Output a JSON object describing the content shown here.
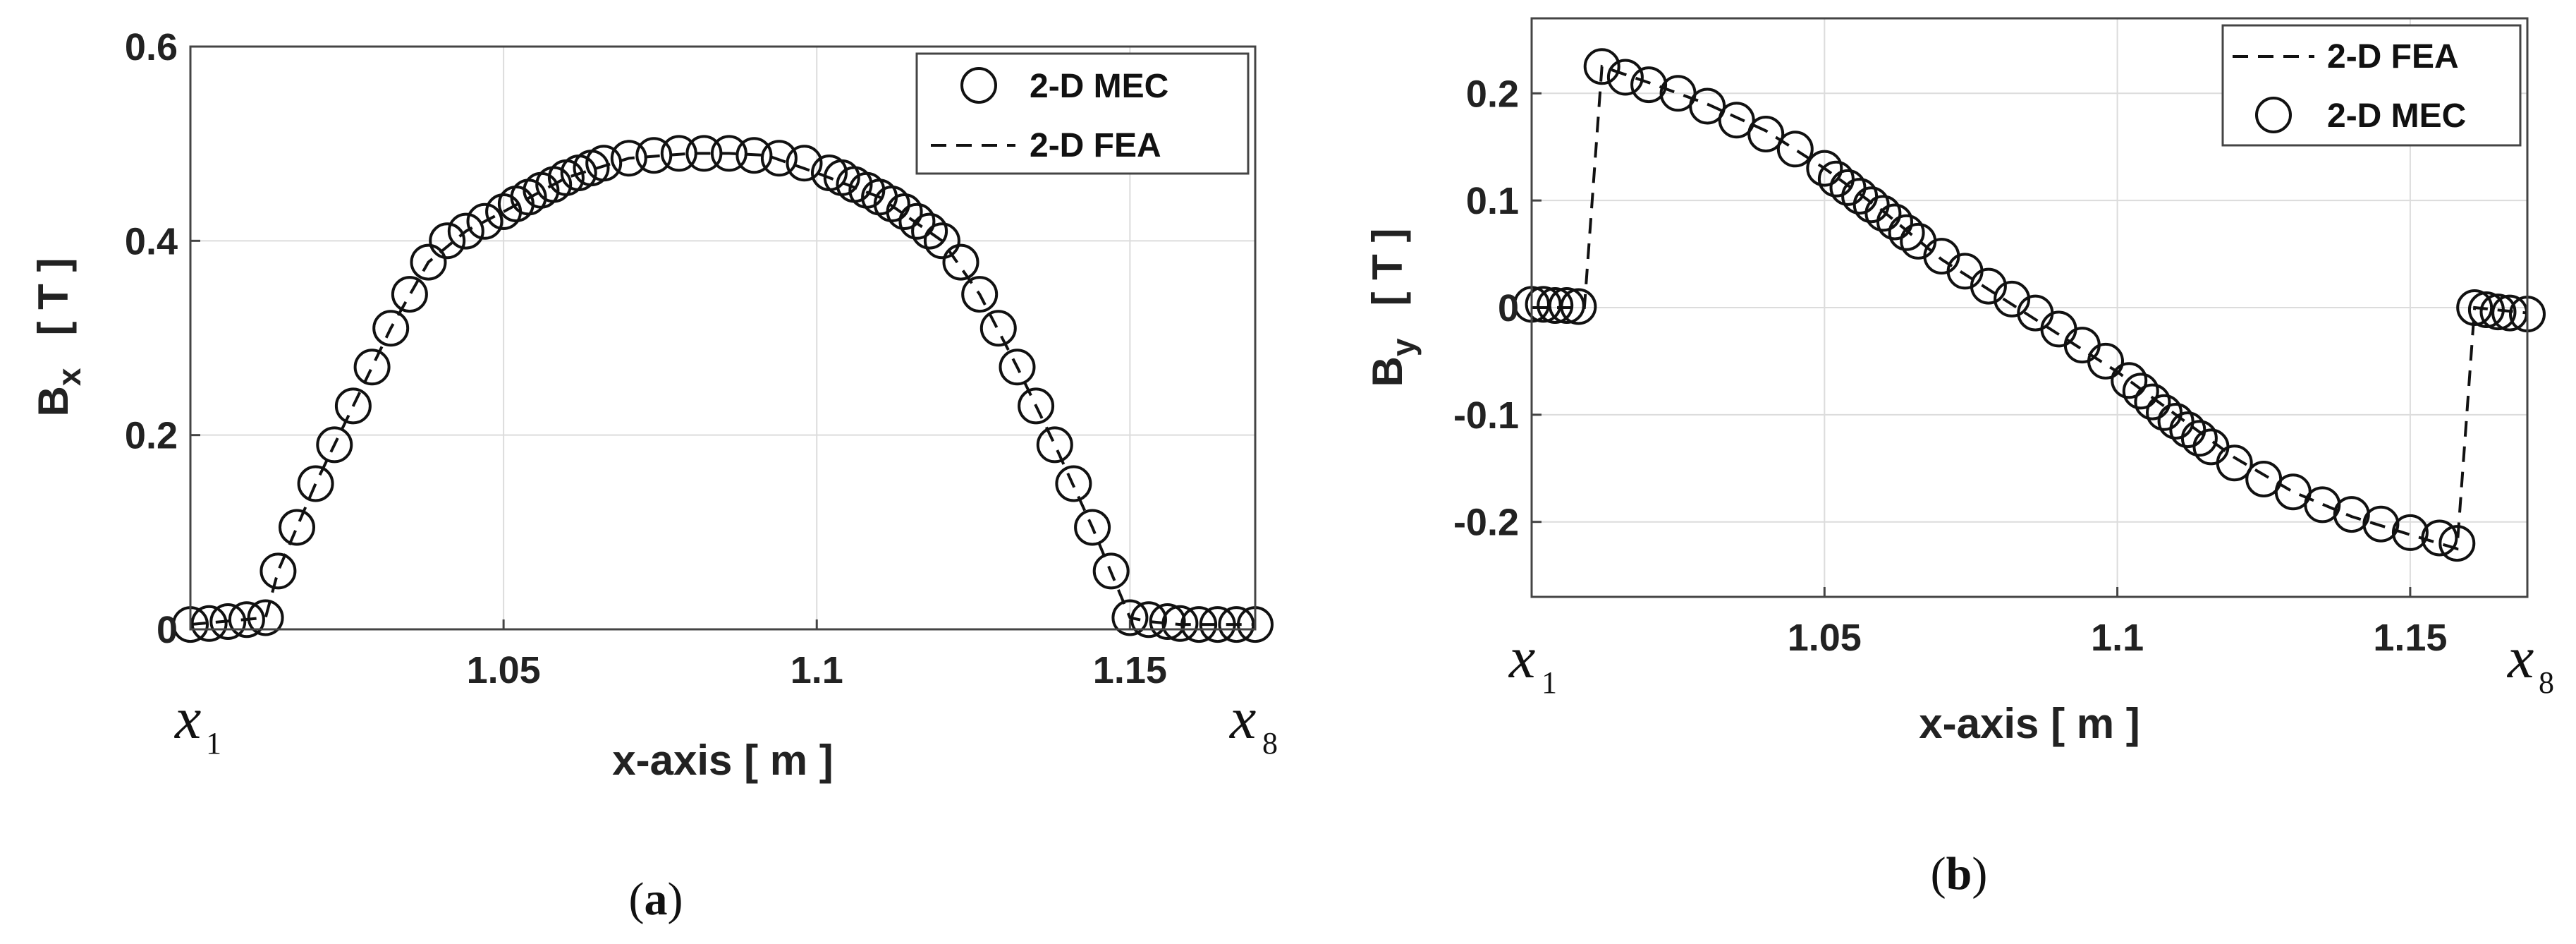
{
  "chart_data": [
    {
      "panel": "(a)",
      "panel_label_main": "a",
      "type": "scatter",
      "xlabel": "x-axis [ m ]",
      "ylabel": "B_x [ T ]",
      "ylabel_main": "B",
      "ylabel_sub": "x",
      "ylabel_unit": "[ T ]",
      "xlim": [
        1.0,
        1.17
      ],
      "ylim": [
        0,
        0.6
      ],
      "xticks": [
        1.05,
        1.1,
        1.15
      ],
      "xtick_labels": [
        "1.05",
        "1.1",
        "1.15"
      ],
      "yticks": [
        0,
        0.2,
        0.4,
        0.6
      ],
      "ytick_labels": [
        "0",
        "0.2",
        "0.4",
        "0.6"
      ],
      "grid": true,
      "legend_position": "top-right",
      "legend": [
        "2-D MEC",
        "2-D FEA"
      ],
      "xmarks": [
        {
          "label": "x",
          "sub": "1",
          "x": 1.0
        },
        {
          "label": "x",
          "sub": "8",
          "x": 1.17
        }
      ],
      "series": [
        {
          "name": "2-D MEC",
          "style": "circle",
          "x": [
            1.0,
            1.003,
            1.006,
            1.009,
            1.012,
            1.014,
            1.017,
            1.02,
            1.023,
            1.026,
            1.029,
            1.032,
            1.035,
            1.038,
            1.041,
            1.044,
            1.047,
            1.05,
            1.052,
            1.054,
            1.056,
            1.058,
            1.06,
            1.062,
            1.064,
            1.066,
            1.07,
            1.074,
            1.078,
            1.082,
            1.086,
            1.09,
            1.094,
            1.098,
            1.102,
            1.104,
            1.106,
            1.108,
            1.11,
            1.112,
            1.114,
            1.116,
            1.118,
            1.12,
            1.123,
            1.126,
            1.129,
            1.132,
            1.135,
            1.138,
            1.141,
            1.144,
            1.147,
            1.15,
            1.153,
            1.156,
            1.158,
            1.161,
            1.164,
            1.167,
            1.17
          ],
          "y": [
            0.005,
            0.006,
            0.008,
            0.01,
            0.012,
            0.06,
            0.105,
            0.15,
            0.19,
            0.23,
            0.27,
            0.31,
            0.345,
            0.378,
            0.4,
            0.41,
            0.42,
            0.43,
            0.438,
            0.445,
            0.452,
            0.458,
            0.465,
            0.47,
            0.475,
            0.48,
            0.485,
            0.488,
            0.49,
            0.49,
            0.49,
            0.488,
            0.485,
            0.48,
            0.47,
            0.465,
            0.458,
            0.452,
            0.445,
            0.438,
            0.43,
            0.42,
            0.41,
            0.4,
            0.378,
            0.345,
            0.31,
            0.27,
            0.23,
            0.19,
            0.15,
            0.105,
            0.06,
            0.012,
            0.01,
            0.008,
            0.006,
            0.005,
            0.005,
            0.005,
            0.005
          ]
        },
        {
          "name": "2-D FEA",
          "style": "dashed",
          "x": [
            1.0,
            1.012,
            1.014,
            1.02,
            1.026,
            1.032,
            1.038,
            1.044,
            1.05,
            1.06,
            1.07,
            1.08,
            1.086,
            1.092,
            1.1,
            1.11,
            1.12,
            1.126,
            1.132,
            1.138,
            1.144,
            1.15,
            1.153,
            1.158,
            1.17
          ],
          "y": [
            0.005,
            0.012,
            0.06,
            0.15,
            0.23,
            0.31,
            0.378,
            0.41,
            0.43,
            0.465,
            0.485,
            0.49,
            0.49,
            0.488,
            0.47,
            0.445,
            0.4,
            0.345,
            0.27,
            0.19,
            0.105,
            0.012,
            0.008,
            0.005,
            0.005
          ]
        }
      ]
    },
    {
      "panel": "(b)",
      "panel_label_main": "b",
      "type": "scatter",
      "xlabel": "x-axis [ m ]",
      "ylabel": "B_y [ T ]",
      "ylabel_main": "B",
      "ylabel_sub": "y",
      "ylabel_unit": "[ T ]",
      "xlim": [
        1.0,
        1.17
      ],
      "ylim": [
        -0.27,
        0.27
      ],
      "xticks": [
        1.05,
        1.1,
        1.15
      ],
      "xtick_labels": [
        "1.05",
        "1.1",
        "1.15"
      ],
      "yticks": [
        0.2,
        0.1,
        0,
        -0.1,
        -0.2
      ],
      "ytick_labels": [
        "0.2",
        "0.1",
        "0",
        "-0.1",
        "-0.2"
      ],
      "grid": true,
      "legend_position": "top-right",
      "legend": [
        "2-D FEA",
        "2-D MEC"
      ],
      "xmarks": [
        {
          "label": "x",
          "sub": "1",
          "x": 1.0
        },
        {
          "label": "x",
          "sub": "8",
          "x": 1.17
        }
      ],
      "series": [
        {
          "name": "2-D FEA",
          "style": "dashed",
          "x": [
            1.0,
            1.009,
            1.012,
            1.02,
            1.03,
            1.04,
            1.05,
            1.06,
            1.07,
            1.08,
            1.09,
            1.1,
            1.11,
            1.12,
            1.13,
            1.14,
            1.15,
            1.158,
            1.161,
            1.17
          ],
          "y": [
            0.0,
            0.0,
            0.225,
            0.21,
            0.19,
            0.165,
            0.13,
            0.09,
            0.045,
            0.01,
            -0.025,
            -0.06,
            -0.1,
            -0.14,
            -0.172,
            -0.195,
            -0.212,
            -0.225,
            0.0,
            -0.005
          ]
        },
        {
          "name": "2-D MEC",
          "style": "circle",
          "x": [
            1.0,
            1.002,
            1.004,
            1.006,
            1.008,
            1.012,
            1.016,
            1.02,
            1.025,
            1.03,
            1.035,
            1.04,
            1.045,
            1.05,
            1.052,
            1.054,
            1.056,
            1.058,
            1.06,
            1.062,
            1.064,
            1.066,
            1.07,
            1.074,
            1.078,
            1.082,
            1.086,
            1.09,
            1.094,
            1.098,
            1.102,
            1.104,
            1.106,
            1.108,
            1.11,
            1.112,
            1.114,
            1.116,
            1.12,
            1.125,
            1.13,
            1.135,
            1.14,
            1.145,
            1.15,
            1.155,
            1.158,
            1.161,
            1.163,
            1.165,
            1.167,
            1.17
          ],
          "y": [
            0.003,
            0.003,
            0.002,
            0.002,
            0.001,
            0.225,
            0.215,
            0.208,
            0.2,
            0.188,
            0.175,
            0.162,
            0.148,
            0.13,
            0.12,
            0.112,
            0.104,
            0.096,
            0.088,
            0.08,
            0.07,
            0.062,
            0.048,
            0.034,
            0.02,
            0.008,
            -0.005,
            -0.02,
            -0.035,
            -0.05,
            -0.068,
            -0.078,
            -0.088,
            -0.098,
            -0.106,
            -0.114,
            -0.122,
            -0.13,
            -0.145,
            -0.16,
            -0.172,
            -0.184,
            -0.193,
            -0.202,
            -0.21,
            -0.215,
            -0.22,
            0.0,
            -0.002,
            -0.004,
            -0.005,
            -0.006
          ]
        }
      ]
    }
  ]
}
